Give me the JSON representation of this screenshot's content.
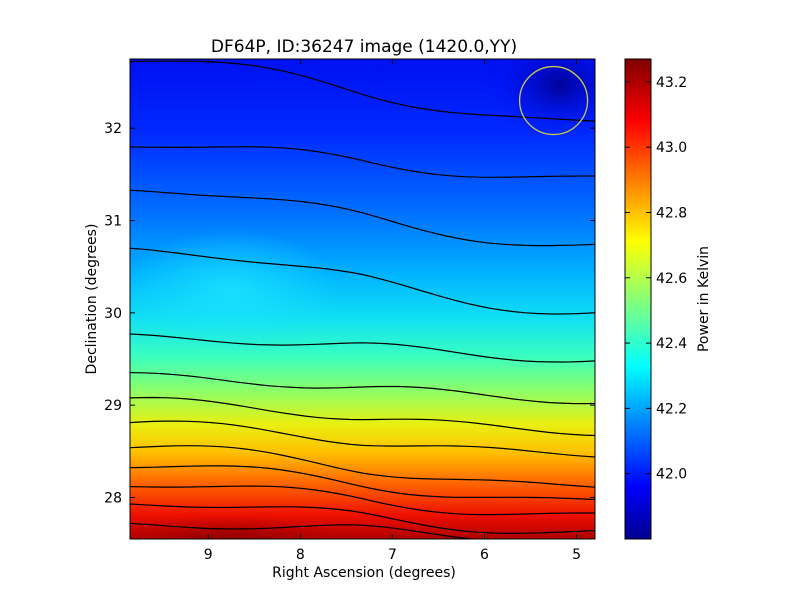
{
  "chart_data": {
    "type": "heatmap",
    "title": "DF64P, ID:36247 image (1420.0,YY)",
    "xlabel": "Right Ascension (degrees)",
    "ylabel": "Declination (degrees)",
    "xlim": [
      9.85,
      4.8
    ],
    "ylim": [
      27.55,
      32.75
    ],
    "x_ticks": [
      9,
      8,
      7,
      6,
      5
    ],
    "x_tick_labels": [
      "9",
      "8",
      "7",
      "6",
      "5"
    ],
    "y_ticks": [
      28,
      29,
      30,
      31,
      32
    ],
    "y_tick_labels": [
      "28",
      "29",
      "30",
      "31",
      "32"
    ],
    "colorbar": {
      "label": "Power in Kelvin",
      "range": [
        41.8,
        43.27
      ],
      "ticks": [
        42.0,
        42.2,
        42.4,
        42.6,
        42.8,
        43.0,
        43.2
      ],
      "tick_labels": [
        "42.0",
        "42.2",
        "42.4",
        "42.6",
        "42.8",
        "43.0",
        "43.2"
      ],
      "colormap": "jet"
    },
    "contour_levels_dec_at_edges": [
      {
        "level": 43.15,
        "dec_at_ra_9_8": 27.72,
        "dec_at_ra_4_8": 27.55
      },
      {
        "level": 43.05,
        "dec_at_ra_9_8": 27.95,
        "dec_at_ra_4_8": 27.62
      },
      {
        "level": 42.95,
        "dec_at_ra_9_8": 28.15,
        "dec_at_ra_4_8": 27.8
      },
      {
        "level": 42.85,
        "dec_at_ra_9_8": 28.35,
        "dec_at_ra_4_8": 27.95
      },
      {
        "level": 42.75,
        "dec_at_ra_9_8": 28.55,
        "dec_at_ra_4_8": 28.1
      },
      {
        "level": 42.65,
        "dec_at_ra_9_8": 28.8,
        "dec_at_ra_4_8": 28.45
      },
      {
        "level": 42.55,
        "dec_at_ra_9_8": 29.05,
        "dec_at_ra_4_8": 28.7
      },
      {
        "level": 42.45,
        "dec_at_ra_9_8": 29.32,
        "dec_at_ra_4_8": 29.05
      },
      {
        "level": 42.35,
        "dec_at_ra_9_8": 29.75,
        "dec_at_ra_4_8": 29.5
      },
      {
        "level": 42.25,
        "dec_at_ra_9_8": 30.7,
        "dec_at_ra_4_8": 30.0
      },
      {
        "level": 42.15,
        "dec_at_ra_9_8": 31.35,
        "dec_at_ra_4_8": 30.72
      },
      {
        "level": 42.05,
        "dec_at_ra_9_8": 31.83,
        "dec_at_ra_4_8": 31.45
      },
      {
        "level": 41.95,
        "dec_at_ra_9_8": 32.75,
        "dec_at_ra_4_8": 32.05
      }
    ],
    "grid": false,
    "beam_marker": {
      "shape": "circle",
      "ra": 5.25,
      "dec": 32.3,
      "color": "#c8c84a"
    }
  }
}
